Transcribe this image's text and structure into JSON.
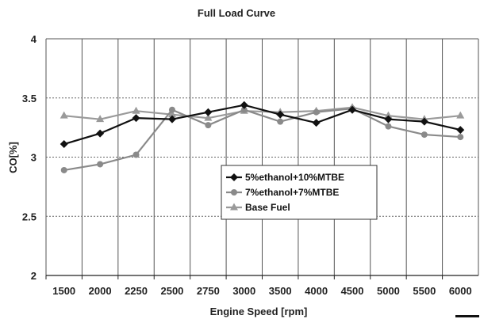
{
  "chart_data": {
    "type": "line",
    "title": "Full Load Curve",
    "xlabel": "Engine Speed [rpm]",
    "ylabel": "CO[%]",
    "categories": [
      "1500",
      "2000",
      "2250",
      "2500",
      "2750",
      "3000",
      "3500",
      "4000",
      "4500",
      "5000",
      "5500",
      "6000"
    ],
    "ylim": [
      2,
      4
    ],
    "yticks": [
      "2",
      "2.5",
      "3",
      "3.5",
      "4"
    ],
    "grid": true,
    "legend_position": "center",
    "series": [
      {
        "name": "5%ethanol+10%MTBE",
        "color": "#111111",
        "marker": "diamond",
        "values": [
          3.11,
          3.2,
          3.33,
          3.32,
          3.38,
          3.44,
          3.36,
          3.29,
          3.4,
          3.32,
          3.3,
          3.23
        ]
      },
      {
        "name": "7%ethanol+7%MTBE",
        "color": "#8a8a8a",
        "marker": "circle",
        "values": [
          2.89,
          2.94,
          3.02,
          3.4,
          3.27,
          3.4,
          3.3,
          3.38,
          3.41,
          3.26,
          3.19,
          3.17
        ]
      },
      {
        "name": "Base Fuel",
        "color": "#9a9a9a",
        "marker": "triangle",
        "values": [
          3.35,
          3.32,
          3.39,
          3.36,
          3.33,
          3.39,
          3.38,
          3.39,
          3.42,
          3.35,
          3.32,
          3.35
        ]
      }
    ]
  }
}
